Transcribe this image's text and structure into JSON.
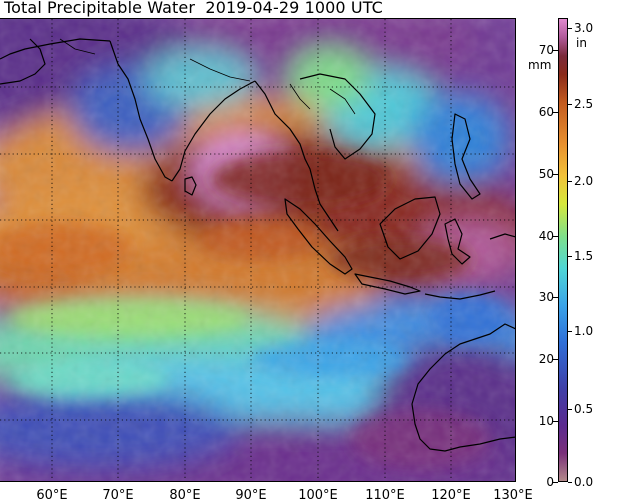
{
  "title": "Total Precipitable Water  2019-04-29 1000 UTC",
  "map": {
    "longitude_labels": [
      "60°E",
      "70°E",
      "80°E",
      "90°E",
      "100°E",
      "110°E",
      "120°E",
      "130°E"
    ],
    "grid": true,
    "graticule_style": "dotted"
  },
  "colorbar": {
    "mm_ticks": [
      "0",
      "10",
      "20",
      "30",
      "40",
      "50",
      "60",
      "70"
    ],
    "in_ticks": [
      "0.0",
      "0.5",
      "1.0",
      "1.5",
      "2.0",
      "2.5",
      "3.0"
    ],
    "unit_mm": "mm",
    "unit_in": "in",
    "palette": [
      "#b38a8a",
      "#5b2a8f",
      "#2f6fd8",
      "#4fd6d6",
      "#d6e83c",
      "#e8902f",
      "#8a2a1a",
      "#e28ad0"
    ]
  }
}
